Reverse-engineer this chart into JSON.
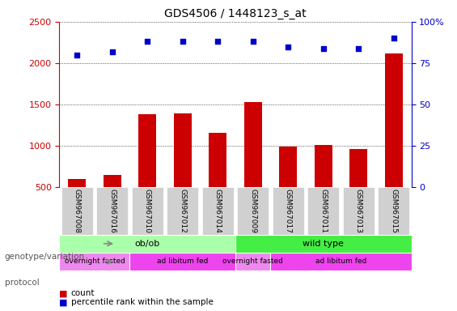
{
  "title": "GDS4506 / 1448123_s_at",
  "samples": [
    "GSM967008",
    "GSM967016",
    "GSM967010",
    "GSM967012",
    "GSM967014",
    "GSM967009",
    "GSM967017",
    "GSM967011",
    "GSM967013",
    "GSM967015"
  ],
  "counts": [
    600,
    650,
    1380,
    1390,
    1160,
    1530,
    990,
    1010,
    960,
    2120
  ],
  "percentile_ranks": [
    80,
    82,
    88,
    88,
    88,
    88,
    85,
    84,
    84,
    90
  ],
  "ylim_left": [
    500,
    2500
  ],
  "ylim_right": [
    0,
    100
  ],
  "yticks_left": [
    500,
    1000,
    1500,
    2000,
    2500
  ],
  "yticks_right": [
    0,
    25,
    50,
    75,
    100
  ],
  "bar_color": "#cc0000",
  "dot_color": "#0000cc",
  "genotype_groups": [
    {
      "label": "ob/ob",
      "start": 0,
      "end": 5,
      "color": "#aaffaa"
    },
    {
      "label": "wild type",
      "start": 5,
      "end": 10,
      "color": "#44ee44"
    }
  ],
  "protocol_groups": [
    {
      "label": "overnight fasted",
      "start": 0,
      "end": 2,
      "color": "#ee88ee"
    },
    {
      "label": "ad libitum fed",
      "start": 2,
      "end": 5,
      "color": "#ee44ee"
    },
    {
      "label": "overnight fasted",
      "start": 5,
      "end": 6,
      "color": "#ee88ee"
    },
    {
      "label": "ad libitum fed",
      "start": 6,
      "end": 10,
      "color": "#ee44ee"
    }
  ],
  "legend_count_color": "#cc0000",
  "legend_pct_color": "#0000cc",
  "left_axis_color": "#cc0000",
  "right_axis_color": "#0000cc",
  "tick_bg_color": "#d0d0d0"
}
